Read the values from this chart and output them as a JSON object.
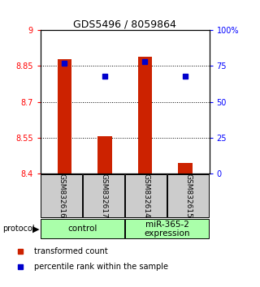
{
  "title": "GDS5496 / 8059864",
  "samples": [
    "GSM832616",
    "GSM832617",
    "GSM832614",
    "GSM832615"
  ],
  "bar_values": [
    8.879,
    8.558,
    8.889,
    8.443
  ],
  "percentile_values": [
    77,
    68,
    78,
    68
  ],
  "ymin": 8.4,
  "ymax": 9.0,
  "yticks": [
    8.4,
    8.55,
    8.7,
    8.85,
    9.0
  ],
  "ytick_labels": [
    "8.4",
    "8.55",
    "8.7",
    "8.85",
    "9"
  ],
  "right_yticks": [
    0,
    25,
    50,
    75,
    100
  ],
  "right_ytick_labels": [
    "0",
    "25",
    "50",
    "75",
    "100%"
  ],
  "bar_color": "#cc2200",
  "marker_color": "#0000cc",
  "dotted_lines": [
    8.55,
    8.7,
    8.85
  ],
  "protocol_labels": [
    "control",
    "miR-365-2\nexpression"
  ],
  "protocol_colors": [
    "#aaffaa",
    "#aaffaa"
  ],
  "sample_box_color": "#cccccc",
  "legend_items": [
    "transformed count",
    "percentile rank within the sample"
  ],
  "legend_colors": [
    "#cc2200",
    "#0000cc"
  ],
  "left_tick_color": "red",
  "right_tick_color": "blue"
}
